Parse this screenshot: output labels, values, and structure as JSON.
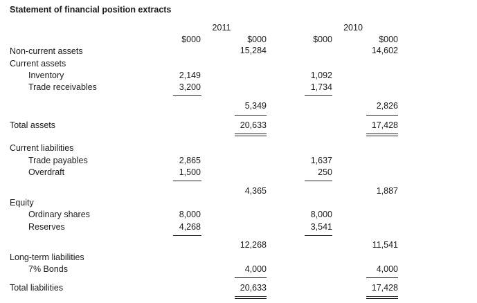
{
  "title": "Statement of financial position extracts",
  "years": [
    "2011",
    "2010"
  ],
  "unit": "$000",
  "labels": {
    "non_current_assets": "Non-current assets",
    "current_assets": "Current assets",
    "inventory": "Inventory",
    "trade_receivables": "Trade receivables",
    "total_assets": "Total assets",
    "current_liabilities": "Current liabilities",
    "trade_payables": "Trade payables",
    "overdraft": "Overdraft",
    "equity": "Equity",
    "ordinary_shares": "Ordinary shares",
    "reserves": "Reserves",
    "long_term_liabilities": "Long-term liabilities",
    "bonds": "7% Bonds",
    "total_liabilities": "Total liabilities"
  },
  "y2011": {
    "non_current_assets": "15,284",
    "inventory": "2,149",
    "trade_receivables": "3,200",
    "current_assets_total": "5,349",
    "total_assets": "20,633",
    "trade_payables": "2,865",
    "overdraft": "1,500",
    "current_liabilities_total": "4,365",
    "ordinary_shares": "8,000",
    "reserves": "4,268",
    "equity_total": "12,268",
    "bonds": "4,000",
    "total_liabilities": "20,633"
  },
  "y2010": {
    "non_current_assets": "14,602",
    "inventory": "1,092",
    "trade_receivables": "1,734",
    "current_assets_total": "2,826",
    "total_assets": "17,428",
    "trade_payables": "1,637",
    "overdraft": "250",
    "current_liabilities_total": "1,887",
    "ordinary_shares": "8,000",
    "reserves": "3,541",
    "equity_total": "11,541",
    "bonds": "4,000",
    "total_liabilities": "17,428"
  }
}
